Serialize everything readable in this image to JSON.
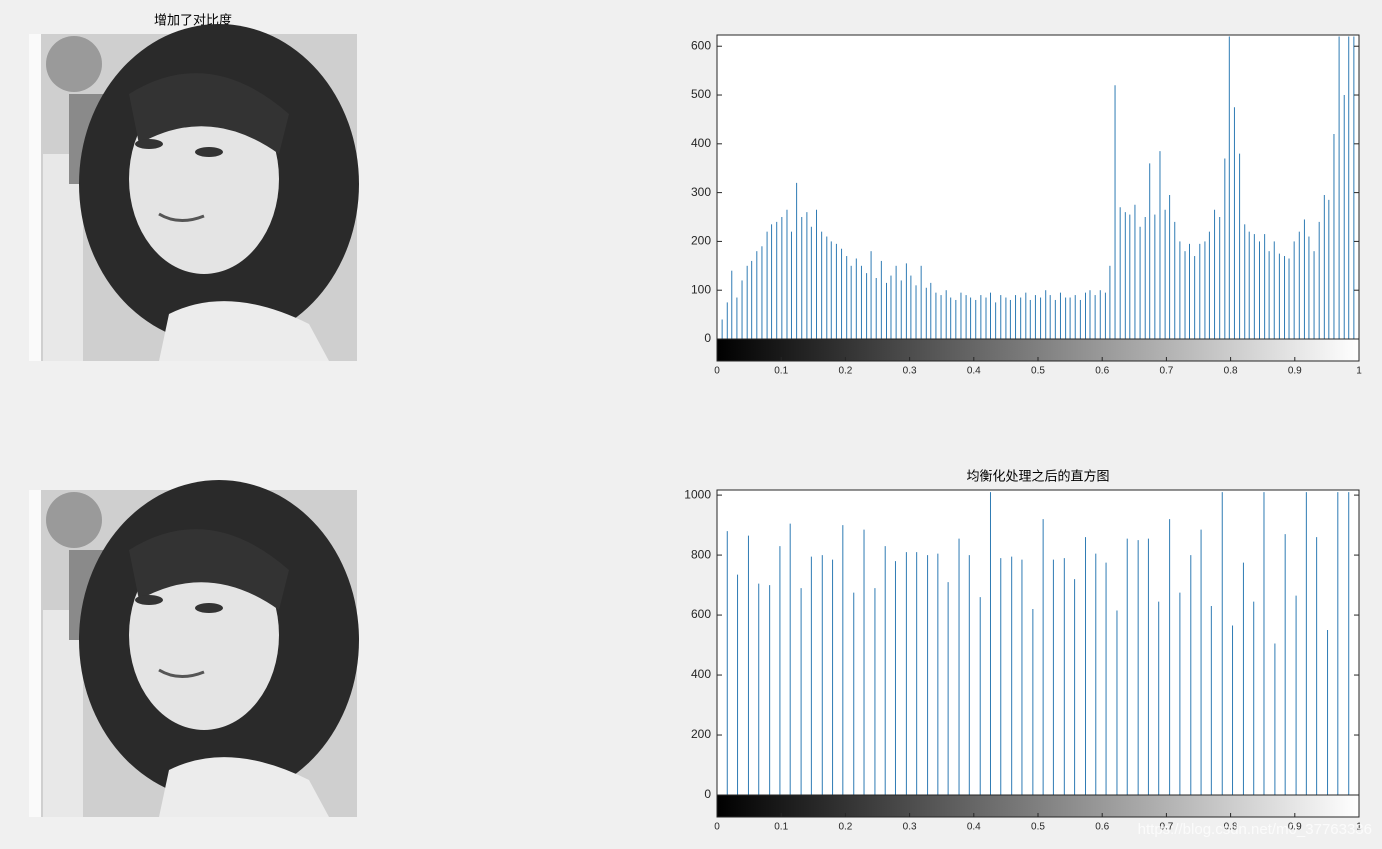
{
  "images": [
    {
      "title": "增加了对比度"
    },
    {}
  ],
  "watermark": "https://blog.csdn.net/m0_37763336",
  "chart_data": [
    {
      "type": "stem",
      "color": "#2e7bb4",
      "xlim": [
        0,
        1
      ],
      "xticks": [
        0,
        0.1,
        0.2,
        0.3,
        0.4,
        0.5,
        0.6,
        0.7,
        0.8,
        0.9,
        1
      ],
      "ylim": [
        0,
        623
      ],
      "yticks": [
        0,
        100,
        200,
        300,
        400,
        500,
        600
      ],
      "colorbar": true,
      "x": [
        0,
        0.008,
        0.016,
        0.023,
        0.031,
        0.039,
        0.047,
        0.054,
        0.062,
        0.07,
        0.078,
        0.085,
        0.093,
        0.101,
        0.109,
        0.116,
        0.124,
        0.132,
        0.14,
        0.147,
        0.155,
        0.163,
        0.171,
        0.178,
        0.186,
        0.194,
        0.202,
        0.209,
        0.217,
        0.225,
        0.233,
        0.24,
        0.248,
        0.256,
        0.264,
        0.271,
        0.279,
        0.287,
        0.295,
        0.302,
        0.31,
        0.318,
        0.326,
        0.333,
        0.341,
        0.349,
        0.357,
        0.364,
        0.372,
        0.38,
        0.388,
        0.395,
        0.403,
        0.411,
        0.419,
        0.426,
        0.434,
        0.442,
        0.45,
        0.457,
        0.465,
        0.473,
        0.481,
        0.488,
        0.496,
        0.504,
        0.512,
        0.519,
        0.527,
        0.535,
        0.543,
        0.55,
        0.558,
        0.566,
        0.574,
        0.581,
        0.589,
        0.597,
        0.605,
        0.612,
        0.62,
        0.628,
        0.636,
        0.643,
        0.651,
        0.659,
        0.667,
        0.674,
        0.682,
        0.69,
        0.698,
        0.705,
        0.713,
        0.721,
        0.729,
        0.736,
        0.744,
        0.752,
        0.76,
        0.767,
        0.775,
        0.783,
        0.791,
        0.798,
        0.806,
        0.814,
        0.822,
        0.829,
        0.837,
        0.845,
        0.853,
        0.86,
        0.868,
        0.876,
        0.884,
        0.891,
        0.899,
        0.907,
        0.915,
        0.922,
        0.93,
        0.938,
        0.946,
        0.953,
        0.961,
        0.969,
        0.977,
        0.984,
        0.992,
        1
      ],
      "values": [
        5,
        40,
        75,
        140,
        85,
        120,
        150,
        160,
        180,
        190,
        220,
        235,
        240,
        250,
        265,
        220,
        320,
        250,
        260,
        230,
        265,
        220,
        210,
        200,
        195,
        185,
        170,
        150,
        165,
        150,
        135,
        180,
        125,
        160,
        115,
        130,
        150,
        120,
        155,
        130,
        110,
        150,
        105,
        115,
        95,
        90,
        100,
        85,
        80,
        95,
        90,
        85,
        80,
        90,
        85,
        95,
        75,
        90,
        85,
        80,
        90,
        85,
        95,
        80,
        90,
        85,
        100,
        90,
        80,
        95,
        85,
        85,
        90,
        80,
        95,
        100,
        90,
        100,
        95,
        150,
        520,
        270,
        260,
        255,
        275,
        230,
        250,
        360,
        255,
        385,
        265,
        295,
        240,
        200,
        180,
        195,
        170,
        195,
        200,
        220,
        265,
        250,
        370,
        620,
        475,
        380,
        235,
        220,
        215,
        200,
        215,
        180,
        200,
        175,
        170,
        165,
        200,
        220,
        245,
        210,
        180,
        240,
        295,
        285,
        420,
        620,
        500,
        620,
        620,
        550
      ]
    },
    {
      "type": "stem",
      "title": "均衡化处理之后的直方图",
      "color": "#2e7bb4",
      "xlim": [
        0,
        1
      ],
      "xticks": [
        0,
        0.1,
        0.2,
        0.3,
        0.4,
        0.5,
        0.6,
        0.7,
        0.8,
        0.9,
        1
      ],
      "ylim": [
        0,
        1017
      ],
      "yticks": [
        0,
        200,
        400,
        600,
        800,
        1000
      ],
      "colorbar": true,
      "x": [
        0.016,
        0.032,
        0.049,
        0.065,
        0.082,
        0.098,
        0.114,
        0.131,
        0.147,
        0.164,
        0.18,
        0.196,
        0.213,
        0.229,
        0.246,
        0.262,
        0.278,
        0.295,
        0.311,
        0.328,
        0.344,
        0.36,
        0.377,
        0.393,
        0.41,
        0.426,
        0.442,
        0.459,
        0.475,
        0.492,
        0.508,
        0.524,
        0.541,
        0.557,
        0.574,
        0.59,
        0.606,
        0.623,
        0.639,
        0.656,
        0.672,
        0.688,
        0.705,
        0.721,
        0.738,
        0.754,
        0.77,
        0.787,
        0.803,
        0.82,
        0.836,
        0.852,
        0.869,
        0.885,
        0.902,
        0.918,
        0.934,
        0.951,
        0.967,
        0.984
      ],
      "values": [
        880,
        735,
        865,
        705,
        700,
        830,
        905,
        690,
        795,
        800,
        785,
        900,
        675,
        885,
        690,
        830,
        780,
        810,
        810,
        800,
        805,
        710,
        855,
        800,
        660,
        1010,
        790,
        795,
        785,
        620,
        920,
        785,
        790,
        720,
        860,
        805,
        775,
        615,
        855,
        850,
        855,
        645,
        920,
        675,
        800,
        885,
        630,
        1010,
        565,
        775,
        645,
        1010,
        505,
        870,
        665,
        1010,
        860,
        550,
        1010,
        1010
      ]
    }
  ]
}
